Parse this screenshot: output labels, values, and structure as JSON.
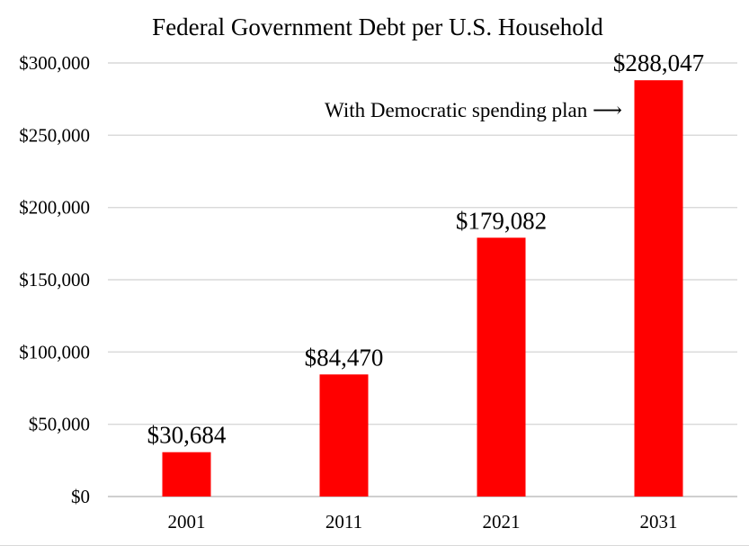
{
  "chart_data": {
    "type": "bar",
    "title": "Federal Government Debt per U.S. Household",
    "categories": [
      "2001",
      "2011",
      "2021",
      "2031"
    ],
    "values": [
      30684,
      84470,
      179082,
      288047
    ],
    "data_labels": [
      "$30,684",
      "$84,470",
      "$179,082",
      "$288,047"
    ],
    "y_ticks": [
      0,
      50000,
      100000,
      150000,
      200000,
      250000,
      300000
    ],
    "y_tick_labels": [
      "$0",
      "$50,000",
      "$100,000",
      "$150,000",
      "$200,000",
      "$250,000",
      "$300,000"
    ],
    "ylim": [
      0,
      300000
    ],
    "xlabel": "",
    "ylabel": "",
    "grid": true,
    "legend": "none",
    "bar_color": "#ff0000",
    "annotation": "With Democratic spending plan ⟶"
  }
}
